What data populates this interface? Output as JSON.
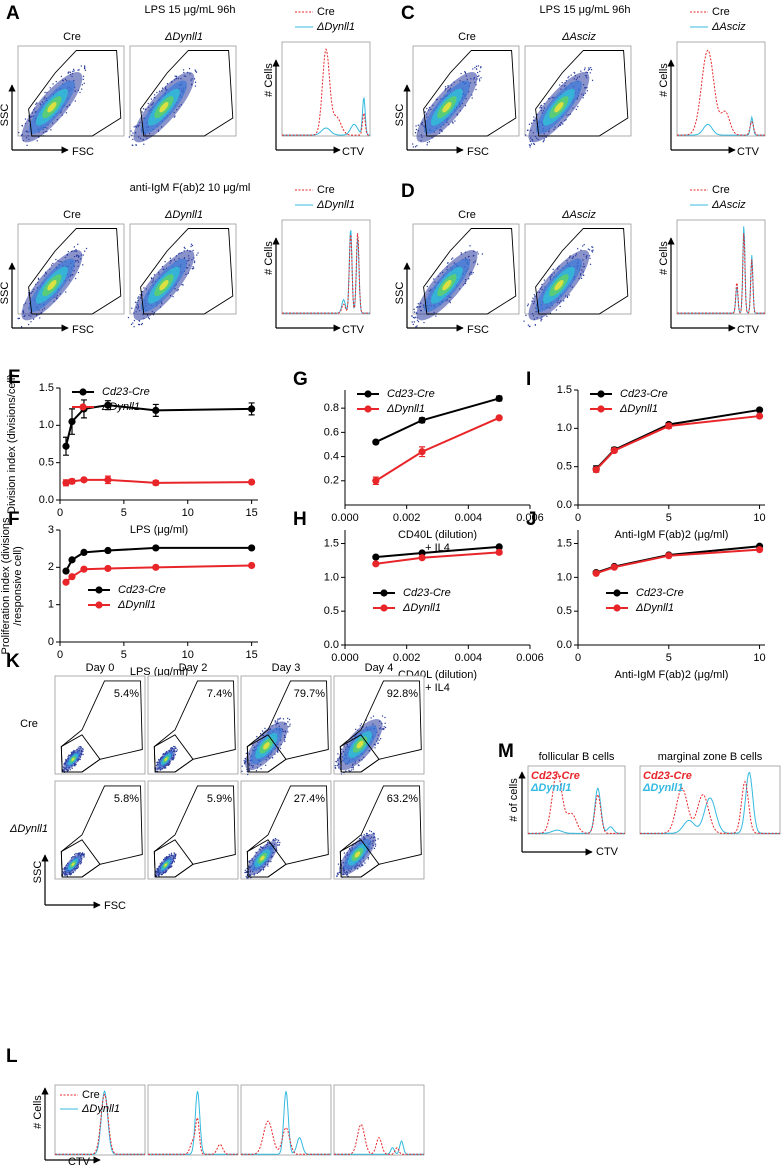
{
  "figure": {
    "A": {
      "label": "A",
      "title": "LPS 15 μg/mL 96h",
      "plots": [
        "Cre",
        "ΔDynll1"
      ],
      "ylabel": "SSC",
      "xlabel": "FSC",
      "legend": [
        "Cre",
        "ΔDynll1"
      ],
      "hist_ylabel": "# Cells",
      "hist_xlabel": "CTV"
    },
    "A2": {
      "title": "anti-IgM F(ab)2 10 μg/ml",
      "plots": [
        "Cre",
        "ΔDynll1"
      ],
      "ylabel": "SSC",
      "xlabel": "FSC",
      "legend": [
        "Cre",
        "ΔDynll1"
      ],
      "hist_ylabel": "# Cells",
      "hist_xlabel": "CTV"
    },
    "C": {
      "label": "C",
      "title": "LPS 15 μg/mL 96h",
      "plots": [
        "Cre",
        "ΔAsciz"
      ],
      "ylabel": "SSC",
      "xlabel": "FSC",
      "legend": [
        "Cre",
        "ΔAsciz"
      ],
      "hist_ylabel": "# Cells",
      "hist_xlabel": "CTV"
    },
    "D": {
      "label": "D",
      "plots": [
        "Cre",
        "ΔAsciz"
      ],
      "ylabel": "SSC",
      "xlabel": "FSC",
      "legend": [
        "Cre",
        "ΔAsciz"
      ],
      "hist_ylabel": "# Cells",
      "hist_xlabel": "CTV"
    },
    "K": {
      "label": "K",
      "days": [
        "Day 0",
        "Day 2",
        "Day 3",
        "Day 4"
      ],
      "rows": [
        {
          "name": "Cre",
          "gates": [
            "5.4%",
            "7.4%",
            "79.7%",
            "92.8%"
          ]
        },
        {
          "name": "ΔDynll1",
          "gates": [
            "5.8%",
            "5.9%",
            "27.4%",
            "63.2%"
          ]
        }
      ],
      "ylabel": "SSC",
      "xlabel": "FSC"
    },
    "L": {
      "label": "L",
      "legend": [
        "Cre",
        "ΔDynll1"
      ],
      "ylabel": "# Cells",
      "xlabel": "CTV"
    },
    "M": {
      "label": "M",
      "titles": [
        "follicular B cells",
        "marginal zone B cells"
      ],
      "legend": [
        "Cd23-Cre",
        "ΔDynll1"
      ],
      "ylabel": "# of cells",
      "xlabel": "CTV"
    }
  },
  "chart_data": [
    {
      "type": "line",
      "label": "E",
      "ylabel": [
        "Division index (divisions/cell)"
      ],
      "xlabel": [
        "LPS (μg/ml)"
      ],
      "x": [
        0.47,
        0.94,
        1.875,
        3.75,
        7.5,
        15
      ],
      "xlim": [
        0,
        15.5
      ],
      "xticks": [
        0,
        5,
        10,
        15
      ],
      "ylim": [
        0,
        1.5
      ],
      "yticks": [
        {
          "value": 0,
          "label": "0.0"
        },
        0.5,
        {
          "value": 1,
          "label": "1.0"
        },
        1.5
      ],
      "legend": "upper left",
      "series": [
        {
          "name": "Cd23-Cre",
          "color": "#000000",
          "values": [
            0.72,
            1.05,
            1.22,
            1.27,
            1.2,
            1.22
          ],
          "errors": [
            0.12,
            0.17,
            0.12,
            0.06,
            0.08,
            0.08
          ]
        },
        {
          "name": "ΔDynll1",
          "color": "#e8262a",
          "values": [
            0.23,
            0.25,
            0.27,
            0.27,
            0.23,
            0.24
          ],
          "errors": [
            0.04,
            0.03,
            0.02,
            0.05,
            0.03,
            0.01
          ]
        }
      ]
    },
    {
      "type": "line",
      "label": "F",
      "ylabel": [
        "Proliferation index (divisions",
        "/responsive cell)"
      ],
      "xlabel": [
        "LPS (μg/ml)"
      ],
      "x": [
        0.47,
        0.94,
        1.875,
        3.75,
        7.5,
        15
      ],
      "xlim": [
        0,
        15.5
      ],
      "xticks": [
        0,
        5,
        10,
        15
      ],
      "ylim": [
        0,
        3
      ],
      "yticks": [
        0,
        1,
        2,
        3
      ],
      "legend": "lower left",
      "series": [
        {
          "name": "Cd23-Cre",
          "color": "#000000",
          "values": [
            1.9,
            2.2,
            2.4,
            2.45,
            2.52,
            2.52
          ]
        },
        {
          "name": "ΔDynll1",
          "color": "#e8262a",
          "values": [
            1.6,
            1.75,
            1.95,
            1.97,
            2.0,
            2.05
          ]
        }
      ]
    },
    {
      "type": "line",
      "label": "G",
      "xlabel": [
        "CD40L (dilution)",
        "+ IL4"
      ],
      "x": [
        0.001,
        0.0025,
        0.005
      ],
      "xlim": [
        0,
        0.006
      ],
      "xticks": [
        {
          "value": 0,
          "label": "0.000"
        },
        {
          "value": 0.002,
          "label": "0.002"
        },
        {
          "value": 0.004,
          "label": "0.004"
        },
        {
          "value": 0.006,
          "label": "0.006"
        }
      ],
      "ylim": [
        0,
        0.95
      ],
      "yticks": [
        0.2,
        0.4,
        0.6,
        0.8
      ],
      "legend": "upper left",
      "series": [
        {
          "name": "Cd23-Cre",
          "color": "#000000",
          "values": [
            0.52,
            0.7,
            0.88
          ],
          "errors": [
            0.01,
            0.02,
            0.02
          ]
        },
        {
          "name": "ΔDynll1",
          "color": "#e8262a",
          "values": [
            0.2,
            0.44,
            0.72
          ],
          "errors": [
            0.03,
            0.04,
            0.01
          ]
        }
      ]
    },
    {
      "type": "line",
      "label": "H",
      "xlabel": [
        "CD40L (dilution)",
        "+ IL4"
      ],
      "x": [
        0.001,
        0.0025,
        0.005
      ],
      "xlim": [
        0,
        0.006
      ],
      "xticks": [
        {
          "value": 0,
          "label": "0.000"
        },
        {
          "value": 0.002,
          "label": "0.002"
        },
        {
          "value": 0.004,
          "label": "0.004"
        },
        {
          "value": 0.006,
          "label": "0.006"
        }
      ],
      "ylim": [
        0,
        1.7
      ],
      "yticks": [
        {
          "value": 0,
          "label": "0.0"
        },
        0.5,
        {
          "value": 1,
          "label": "1.0"
        },
        1.5
      ],
      "legend": "lower left",
      "series": [
        {
          "name": "Cd23-Cre",
          "color": "#000000",
          "values": [
            1.3,
            1.36,
            1.45
          ]
        },
        {
          "name": "ΔDynll1",
          "color": "#e8262a",
          "values": [
            1.2,
            1.29,
            1.37
          ]
        }
      ]
    },
    {
      "type": "line",
      "label": "I",
      "xlabel": [
        "Anti-IgM F(ab)2 (μg/ml)"
      ],
      "x": [
        1,
        2,
        5,
        10
      ],
      "xlim": [
        0,
        10.3
      ],
      "xticks": [
        0,
        5,
        10
      ],
      "ylim": [
        0,
        1.5
      ],
      "yticks": [
        {
          "value": 0,
          "label": "0.0"
        },
        0.5,
        {
          "value": 1,
          "label": "1.0"
        },
        1.5
      ],
      "legend": "upper left",
      "series": [
        {
          "name": "Cd23-Cre",
          "color": "#000000",
          "values": [
            0.47,
            0.72,
            1.05,
            1.24
          ],
          "errors": [
            0.04,
            0.03,
            0.02,
            0.01
          ]
        },
        {
          "name": "ΔDynll1",
          "color": "#e8262a",
          "values": [
            0.46,
            0.71,
            1.03,
            1.16
          ],
          "errors": [
            0.03,
            0.02,
            0.03,
            0.01
          ]
        }
      ]
    },
    {
      "type": "line",
      "label": "J",
      "xlabel": [
        "Anti-IgM F(ab)2 (μg/ml)"
      ],
      "x": [
        1,
        2,
        5,
        10
      ],
      "xlim": [
        0,
        10.3
      ],
      "xticks": [
        0,
        5,
        10
      ],
      "ylim": [
        0,
        1.7
      ],
      "yticks": [
        {
          "value": 0,
          "label": "0.0"
        },
        0.5,
        {
          "value": 1,
          "label": "1.0"
        },
        1.5
      ],
      "legend": "lower left",
      "series": [
        {
          "name": "Cd23-Cre",
          "color": "#000000",
          "values": [
            1.07,
            1.16,
            1.33,
            1.46
          ]
        },
        {
          "name": "ΔDynll1",
          "color": "#e8262a",
          "values": [
            1.06,
            1.15,
            1.32,
            1.41
          ]
        }
      ]
    }
  ]
}
